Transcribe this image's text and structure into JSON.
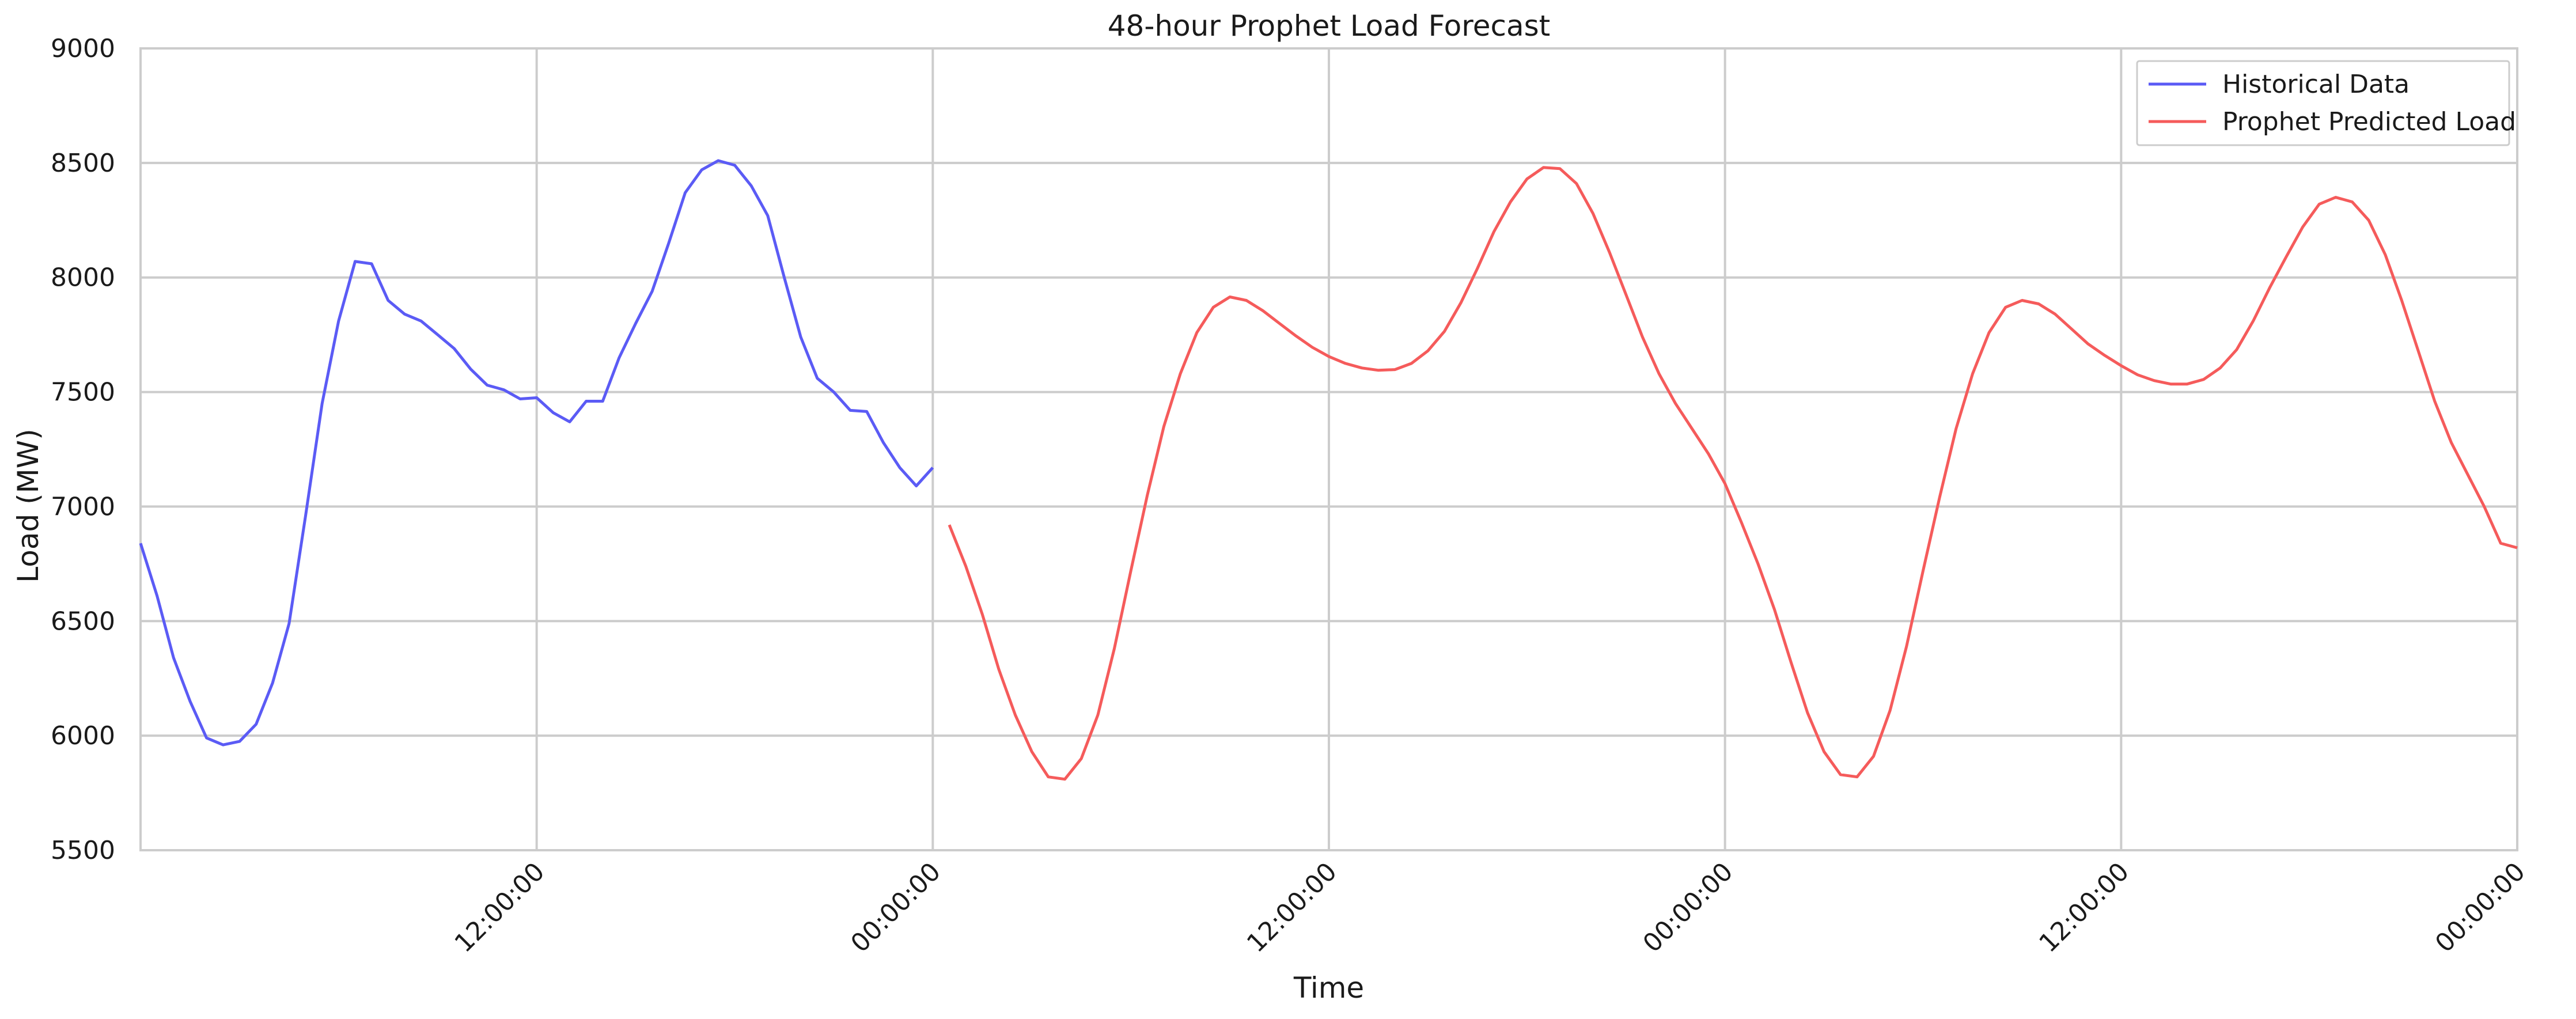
{
  "chart_data": {
    "type": "line",
    "title": "48-hour Prophet Load Forecast",
    "xlabel": "Time",
    "ylabel": "Load (MW)",
    "ylim": [
      5500,
      9000
    ],
    "yticks": [
      5500,
      6000,
      6500,
      7000,
      7500,
      8000,
      8500,
      9000
    ],
    "xlim_hours": [
      -24,
      48
    ],
    "x_tick_hours": [
      -12,
      0,
      12,
      24,
      36,
      48
    ],
    "x_tick_labels": [
      "12:00:00",
      "00:00:00",
      "12:00:00",
      "00:00:00",
      "12:00:00",
      "00:00:00"
    ],
    "x_tick_rotation": 45,
    "grid": true,
    "legend_position": "top-right",
    "series": [
      {
        "name": "Historical Data",
        "color": "#5b5bf5",
        "x_hours": [
          -24,
          -23.5,
          -23,
          -22.5,
          -22,
          -21.5,
          -21,
          -20.5,
          -20,
          -19.5,
          -19,
          -18.5,
          -18,
          -17.5,
          -17,
          -16.5,
          -16,
          -15.5,
          -15,
          -14.5,
          -14,
          -13.5,
          -13,
          -12.5,
          -12,
          -11.5,
          -11,
          -10.5,
          -10,
          -9.5,
          -9,
          -8.5,
          -8,
          -7.5,
          -7,
          -6.5,
          -6,
          -5.5,
          -5,
          -4.5,
          -4,
          -3.5,
          -3,
          -2.5,
          -2,
          -1.5,
          -1,
          -0.5,
          0
        ],
        "values": [
          6840,
          6610,
          6340,
          6150,
          5990,
          5960,
          5975,
          6050,
          6230,
          6490,
          6960,
          7450,
          7810,
          8070,
          8060,
          7900,
          7840,
          7810,
          7750,
          7690,
          7600,
          7530,
          7510,
          7470,
          7475,
          7410,
          7370,
          7460,
          7460,
          7650,
          7800,
          7940,
          8150,
          8370,
          8470,
          8510,
          8490,
          8400,
          8270,
          8000,
          7740,
          7560,
          7500,
          7420,
          7415,
          7280,
          7170,
          7090,
          7170
        ]
      },
      {
        "name": "Prophet Predicted Load",
        "color": "#f55b5b",
        "x_hours": [
          0.5,
          1,
          1.5,
          2,
          2.5,
          3,
          3.5,
          4,
          4.5,
          5,
          5.5,
          6,
          6.5,
          7,
          7.5,
          8,
          8.5,
          9,
          9.5,
          10,
          10.5,
          11,
          11.5,
          12,
          12.5,
          13,
          13.5,
          14,
          14.5,
          15,
          15.5,
          16,
          16.5,
          17,
          17.5,
          18,
          18.5,
          19,
          19.5,
          20,
          20.5,
          21,
          21.5,
          22,
          22.5,
          23,
          23.5,
          24,
          24.5,
          25,
          25.5,
          26,
          26.5,
          27,
          27.5,
          28,
          28.5,
          29,
          29.5,
          30,
          30.5,
          31,
          31.5,
          32,
          32.5,
          33,
          33.5,
          34,
          34.5,
          35,
          35.5,
          36,
          36.5,
          37,
          37.5,
          38,
          38.5,
          39,
          39.5,
          40,
          40.5,
          41,
          41.5,
          42,
          42.5,
          43,
          43.5,
          44,
          44.5,
          45,
          45.5,
          46,
          46.5,
          47,
          47.5,
          48
        ],
        "values": [
          6920,
          6740,
          6530,
          6290,
          6090,
          5930,
          5820,
          5810,
          5900,
          6090,
          6380,
          6720,
          7050,
          7350,
          7580,
          7760,
          7870,
          7915,
          7900,
          7855,
          7800,
          7745,
          7695,
          7655,
          7625,
          7605,
          7595,
          7598,
          7625,
          7680,
          7765,
          7890,
          8040,
          8200,
          8330,
          8430,
          8480,
          8475,
          8410,
          8280,
          8110,
          7925,
          7740,
          7580,
          7450,
          7340,
          7230,
          7100,
          6930,
          6750,
          6550,
          6320,
          6100,
          5930,
          5830,
          5820,
          5910,
          6110,
          6390,
          6720,
          7040,
          7340,
          7580,
          7760,
          7870,
          7900,
          7885,
          7840,
          7775,
          7710,
          7660,
          7615,
          7575,
          7550,
          7535,
          7535,
          7555,
          7605,
          7685,
          7810,
          7955,
          8090,
          8220,
          8320,
          8350,
          8330,
          8250,
          8100,
          7900,
          7680,
          7460,
          7280,
          7140,
          7000,
          6840,
          6820
        ]
      }
    ]
  }
}
